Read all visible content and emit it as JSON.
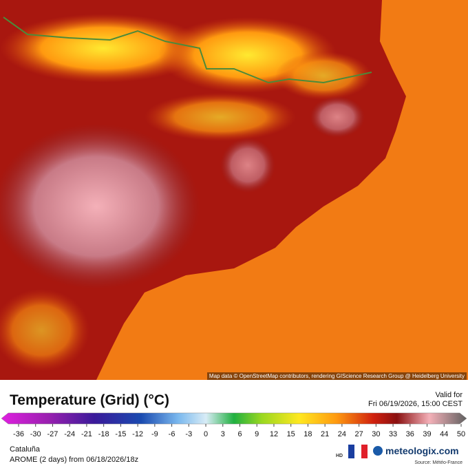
{
  "map": {
    "attribution": "Map data © OpenStreetMap contributors, rendering GIScience Research Group @ Heidelberg University"
  },
  "legend": {
    "title": "Temperature (Grid) (°C)",
    "valid_label": "Valid for",
    "valid_time": "Fri 06/19/2026, 15:00 CEST",
    "ticks": [
      -36,
      -30,
      -27,
      -24,
      -21,
      -18,
      -15,
      -12,
      -9,
      -6,
      -3,
      0,
      3,
      6,
      9,
      12,
      15,
      18,
      21,
      24,
      27,
      30,
      33,
      36,
      39,
      44,
      50
    ]
  },
  "footer": {
    "region": "Cataluña",
    "model": "AROME (2 days) from 06/18/2026/18z",
    "hd": "HD",
    "brand": "meteologix.com",
    "source": "Source: Météo-France"
  }
}
